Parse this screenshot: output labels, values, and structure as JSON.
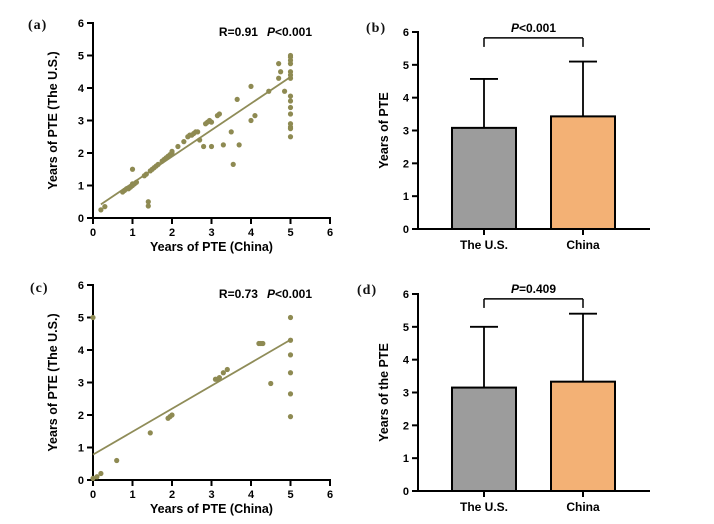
{
  "figure": {
    "background": "#ffffff",
    "colors": {
      "scatter_point": "#8e8a52",
      "regression_line": "#8f8c58",
      "axis": "#000000",
      "text": "#000000",
      "bar_us": "#9c9c9c",
      "bar_china": "#f3b175"
    }
  },
  "chart_data": [
    {
      "id": "a",
      "panel_label": "(a)",
      "type": "scatter",
      "xlabel": "Years of  PTE (China)",
      "ylabel": "Years of  PTE (The U.S.)",
      "xlim": [
        0,
        6
      ],
      "ylim": [
        0,
        6
      ],
      "xticks": [
        0,
        1,
        2,
        3,
        4,
        5,
        6
      ],
      "yticks": [
        0,
        1,
        2,
        3,
        4,
        5,
        6
      ],
      "annotation": {
        "r_label": "R=0.91",
        "p_prefix": "P",
        "p_rest": "<0.001"
      },
      "regression_line": {
        "x1": 0.2,
        "y1": 0.42,
        "x2": 5.05,
        "y2": 4.38
      },
      "points": [
        [
          0.2,
          0.25
        ],
        [
          0.3,
          0.35
        ],
        [
          0.75,
          0.8
        ],
        [
          0.8,
          0.85
        ],
        [
          0.85,
          0.9
        ],
        [
          0.9,
          0.9
        ],
        [
          0.95,
          0.95
        ],
        [
          1.0,
          1.0
        ],
        [
          1.0,
          1.05
        ],
        [
          1.05,
          1.05
        ],
        [
          1.1,
          1.1
        ],
        [
          1.0,
          1.5
        ],
        [
          1.3,
          1.3
        ],
        [
          1.35,
          1.35
        ],
        [
          1.4,
          0.37
        ],
        [
          1.4,
          0.5
        ],
        [
          1.45,
          1.45
        ],
        [
          1.5,
          1.5
        ],
        [
          1.55,
          1.55
        ],
        [
          1.6,
          1.6
        ],
        [
          1.65,
          1.65
        ],
        [
          1.75,
          1.75
        ],
        [
          1.8,
          1.8
        ],
        [
          1.85,
          1.85
        ],
        [
          1.9,
          1.9
        ],
        [
          1.95,
          1.95
        ],
        [
          2.0,
          2.0
        ],
        [
          2.0,
          2.05
        ],
        [
          2.15,
          2.2
        ],
        [
          2.3,
          2.35
        ],
        [
          2.4,
          2.5
        ],
        [
          2.45,
          2.55
        ],
        [
          2.5,
          2.55
        ],
        [
          2.55,
          2.6
        ],
        [
          2.6,
          2.65
        ],
        [
          2.65,
          2.65
        ],
        [
          2.7,
          2.4
        ],
        [
          2.8,
          2.2
        ],
        [
          2.85,
          2.9
        ],
        [
          2.9,
          2.95
        ],
        [
          2.95,
          3.0
        ],
        [
          3.0,
          2.95
        ],
        [
          3.0,
          2.2
        ],
        [
          3.15,
          3.15
        ],
        [
          3.2,
          3.2
        ],
        [
          3.3,
          2.25
        ],
        [
          3.5,
          2.65
        ],
        [
          3.55,
          1.65
        ],
        [
          3.65,
          3.65
        ],
        [
          3.7,
          2.25
        ],
        [
          4.0,
          4.05
        ],
        [
          4.0,
          3.0
        ],
        [
          4.1,
          3.15
        ],
        [
          4.45,
          3.9
        ],
        [
          4.7,
          4.75
        ],
        [
          4.7,
          4.3
        ],
        [
          4.75,
          4.5
        ],
        [
          4.85,
          3.9
        ],
        [
          5,
          5
        ],
        [
          5,
          4.95
        ],
        [
          5,
          4.85
        ],
        [
          5,
          4.75
        ],
        [
          5,
          4.5
        ],
        [
          5,
          4.4
        ],
        [
          5,
          4.3
        ],
        [
          5,
          3.75
        ],
        [
          5,
          3.6
        ],
        [
          5,
          3.4
        ],
        [
          5,
          3.2
        ],
        [
          5,
          2.9
        ],
        [
          5,
          2.8
        ],
        [
          5,
          2.75
        ],
        [
          5,
          2.5
        ]
      ]
    },
    {
      "id": "b",
      "panel_label": "(b)",
      "type": "bar",
      "categories": [
        "The U.S.",
        "China"
      ],
      "values": [
        3.08,
        3.43
      ],
      "error_tops": [
        4.57,
        5.1
      ],
      "bar_colors": [
        "#9c9c9c",
        "#f3b175"
      ],
      "ylabel": "Years of PTE",
      "ylim": [
        0,
        6
      ],
      "yticks": [
        0,
        1,
        2,
        3,
        4,
        5,
        6
      ],
      "significance": {
        "p_prefix": "P",
        "p_rest": "<0.001",
        "bracket_y": 5.82
      }
    },
    {
      "id": "c",
      "panel_label": "(c)",
      "type": "scatter",
      "xlabel": "Years of PTE (China)",
      "ylabel": "Years of PTE (The U.S.)",
      "xlim": [
        0,
        6
      ],
      "ylim": [
        0,
        6
      ],
      "xticks": [
        0,
        1,
        2,
        3,
        4,
        5,
        6
      ],
      "yticks": [
        0,
        1,
        2,
        3,
        4,
        5,
        6
      ],
      "annotation": {
        "r_label": "R=0.73",
        "p_prefix": "P",
        "p_rest": "<0.001"
      },
      "regression_line": {
        "x1": 0,
        "y1": 0.78,
        "x2": 5.05,
        "y2": 4.35
      },
      "points": [
        [
          0,
          0.05
        ],
        [
          0.1,
          0.1
        ],
        [
          0.2,
          0.2
        ],
        [
          0,
          5.0
        ],
        [
          0.6,
          0.6
        ],
        [
          1.45,
          1.45
        ],
        [
          1.9,
          1.9
        ],
        [
          1.95,
          1.95
        ],
        [
          2.0,
          2.0
        ],
        [
          3.1,
          3.1
        ],
        [
          3.15,
          3.1
        ],
        [
          3.2,
          3.15
        ],
        [
          3.3,
          3.3
        ],
        [
          3.4,
          3.4
        ],
        [
          4.2,
          4.2
        ],
        [
          4.25,
          4.2
        ],
        [
          4.3,
          4.2
        ],
        [
          4.5,
          2.97
        ],
        [
          5,
          5
        ],
        [
          5,
          4.3
        ],
        [
          5,
          3.85
        ],
        [
          5,
          3.3
        ],
        [
          5,
          2.65
        ],
        [
          5,
          1.95
        ]
      ]
    },
    {
      "id": "d",
      "panel_label": "(d)",
      "type": "bar",
      "categories": [
        "The U.S.",
        "China"
      ],
      "values": [
        3.15,
        3.33
      ],
      "error_tops": [
        5.0,
        5.4
      ],
      "bar_colors": [
        "#9c9c9c",
        "#f3b175"
      ],
      "ylabel": "Years of the PTE",
      "ylim": [
        0,
        6
      ],
      "yticks": [
        0,
        1,
        2,
        3,
        4,
        5,
        6
      ],
      "significance": {
        "p_prefix": "P",
        "p_rest": "=0.409",
        "bracket_y": 5.85
      }
    }
  ]
}
